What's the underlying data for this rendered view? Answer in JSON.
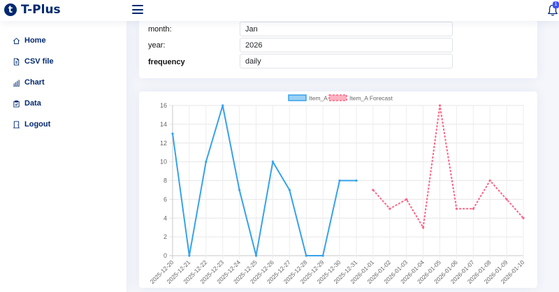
{
  "app": {
    "brand_letter": "t",
    "brand_name": "T-Plus",
    "notification_count": "1"
  },
  "sidebar": {
    "items": [
      {
        "label": "Home",
        "icon": "house-icon"
      },
      {
        "label": "CSV file",
        "icon": "file-icon"
      },
      {
        "label": "Chart",
        "icon": "bar-chart-icon"
      },
      {
        "label": "Data",
        "icon": "clipboard-icon"
      },
      {
        "label": "Logout",
        "icon": "door-icon"
      }
    ]
  },
  "form": {
    "month_label": "month:",
    "month_value": "Jan",
    "year_label": "year:",
    "year_value": "2026",
    "frequency_label": "frequency",
    "frequency_value": "daily"
  },
  "colors": {
    "actual": "#36a2eb",
    "forecast": "#ff6384",
    "brand": "#012970"
  },
  "chart_data": {
    "type": "line",
    "ylim": [
      0,
      16
    ],
    "yticks": [
      0,
      2,
      4,
      6,
      8,
      10,
      12,
      14,
      16
    ],
    "categories": [
      "2025-12-20",
      "2025-12-21",
      "2025-12-22",
      "2025-12-23",
      "2025-12-24",
      "2025-12-25",
      "2025-12-26",
      "2025-12-27",
      "2025-12-28",
      "2025-12-29",
      "2025-12-30",
      "2025-12-31",
      "2026-01-01",
      "2026-01-02",
      "2026-01-03",
      "2026-01-04",
      "2026-01-05",
      "2026-01-06",
      "2026-01-07",
      "2026-01-08",
      "2026-01-09",
      "2026-01-10"
    ],
    "legend_position": "top",
    "grid": true,
    "series": [
      {
        "name": "Item_A",
        "style": "solid",
        "values": [
          13,
          0,
          10,
          16,
          7,
          0,
          10,
          7,
          0,
          0,
          8,
          8,
          null,
          null,
          null,
          null,
          null,
          null,
          null,
          null,
          null,
          null
        ]
      },
      {
        "name": "Item_A Forecast",
        "style": "dashed",
        "values": [
          null,
          null,
          null,
          null,
          null,
          null,
          null,
          null,
          null,
          null,
          null,
          null,
          7,
          5,
          6,
          3,
          16,
          5,
          5,
          8,
          6,
          4
        ]
      }
    ]
  }
}
